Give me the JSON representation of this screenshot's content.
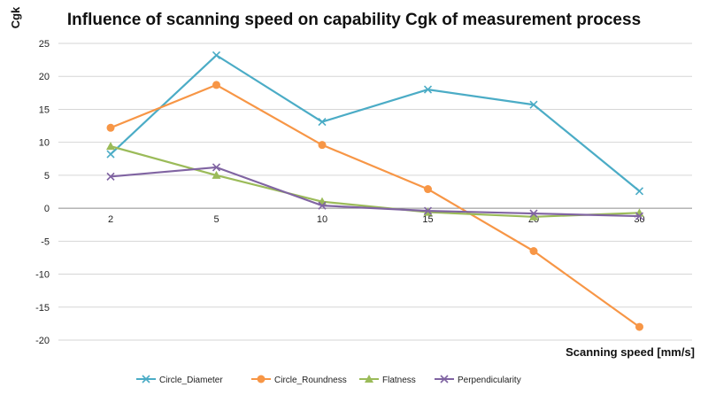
{
  "chart_data": {
    "type": "line",
    "title": "Influence of scanning speed on capability Cgk of measurement process",
    "xlabel": "Scanning speed [mm/s]",
    "ylabel": "Cgk",
    "categories": [
      "2",
      "5",
      "10",
      "15",
      "20",
      "30"
    ],
    "ylim": [
      -20,
      25
    ],
    "yticks": [
      25,
      20,
      15,
      10,
      5,
      0,
      -5,
      -10,
      -15,
      -20
    ],
    "grid": true,
    "legend_position": "bottom",
    "series": [
      {
        "name": "Circle_Diameter",
        "color": "#4bacc6",
        "marker": "x-mark",
        "values": [
          8.2,
          23.2,
          13.1,
          18.0,
          15.7,
          2.6
        ]
      },
      {
        "name": "Circle_Roundness",
        "color": "#f79646",
        "marker": "circle",
        "values": [
          12.2,
          18.7,
          9.6,
          2.9,
          -6.5,
          -18.0
        ]
      },
      {
        "name": "Flatness",
        "color": "#9bbb59",
        "marker": "triangle",
        "values": [
          9.4,
          5.0,
          1.0,
          -0.6,
          -1.3,
          -0.7
        ]
      },
      {
        "name": "Perpendicularity",
        "color": "#8064a2",
        "marker": "x-mark",
        "values": [
          4.8,
          6.2,
          0.4,
          -0.4,
          -0.8,
          -1.2
        ]
      }
    ]
  }
}
